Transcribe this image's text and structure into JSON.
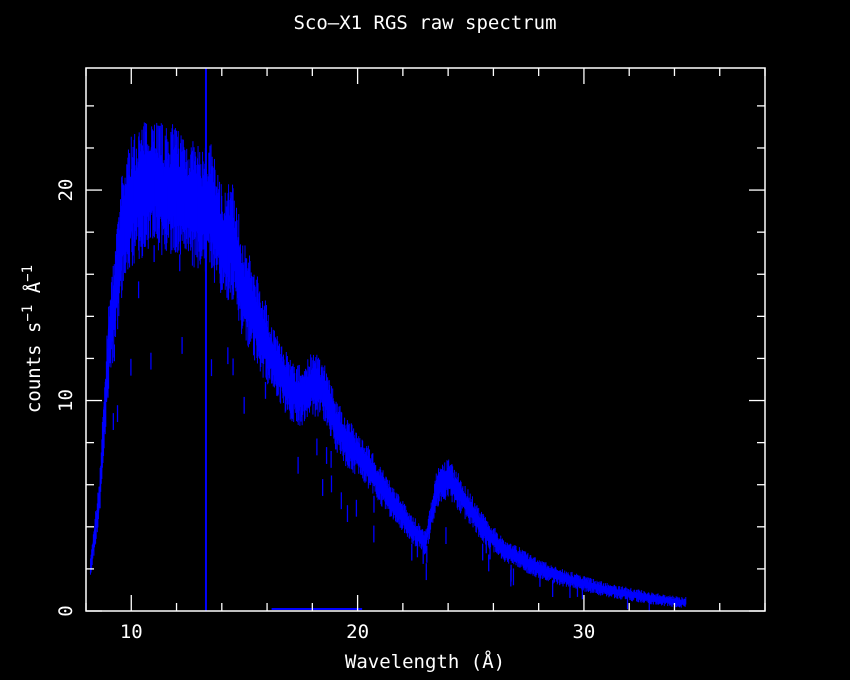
{
  "chart_data": {
    "type": "line",
    "title": "Sco—X1 RGS raw spectrum",
    "xlabel": "Wavelength (Å)",
    "ylabel_parts": [
      "counts s",
      "−1",
      " Å",
      "−1"
    ],
    "xlim": [
      8,
      38
    ],
    "ylim": [
      0,
      25.8
    ],
    "x_ticks": [
      10,
      20,
      30
    ],
    "y_ticks": [
      0,
      10,
      20
    ],
    "x_tick_labels": [
      "10",
      "20",
      "30"
    ],
    "y_tick_labels": [
      "0",
      "10",
      "20"
    ],
    "grid": false,
    "colors": {
      "background": "#000000",
      "axes": "#ffffff",
      "series": "#0000ff"
    },
    "series": [
      {
        "x": [
          8.2,
          8.6,
          9.0,
          9.3,
          9.6,
          10.0,
          10.5,
          11.0,
          11.5,
          12.0,
          12.5,
          13.0,
          13.5,
          14.0,
          14.5,
          15.0,
          15.5,
          16.0,
          16.5,
          17.0,
          17.5,
          18.0,
          18.5,
          19.0,
          19.5,
          20.0,
          20.5,
          21.0,
          21.5,
          22.0,
          22.5,
          23.0,
          23.5,
          24.0,
          24.5,
          25.0,
          25.5,
          26.0,
          26.5,
          27.0,
          28.0,
          29.0,
          30.0,
          31.0,
          32.0,
          33.0,
          34.0,
          34.5
        ],
        "y": [
          2.0,
          5.5,
          12.5,
          15.0,
          18.0,
          19.5,
          20.0,
          20.5,
          19.8,
          20.0,
          19.5,
          19.0,
          19.2,
          17.5,
          17.5,
          15.0,
          14.0,
          12.5,
          11.5,
          10.5,
          10.2,
          10.8,
          10.5,
          9.0,
          8.0,
          7.5,
          6.8,
          6.0,
          5.2,
          4.5,
          3.8,
          3.2,
          5.8,
          6.3,
          5.6,
          4.8,
          4.0,
          3.4,
          2.9,
          2.6,
          2.0,
          1.6,
          1.3,
          1.0,
          0.8,
          0.6,
          0.45,
          0.4
        ]
      }
    ],
    "vertical_line_x": 13.3,
    "baseline_segment": [
      16.2,
      20.2
    ]
  }
}
